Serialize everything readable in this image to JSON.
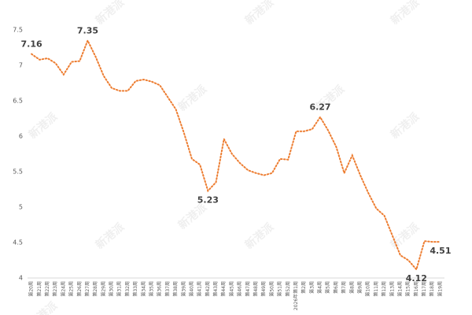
{
  "chart_data": {
    "type": "line",
    "watermark": "新港派",
    "categories": [
      "第20周",
      "第21周",
      "第22周",
      "第23周",
      "第24周",
      "第25周",
      "第26周",
      "第27周",
      "第28周",
      "第29周",
      "第30周",
      "第31周",
      "第32周",
      "第33周",
      "第34周",
      "第35周",
      "第36周",
      "第37周",
      "第38周",
      "第39周",
      "第40周",
      "第41周",
      "第42周",
      "第43周",
      "第44周",
      "第45周",
      "第46周",
      "第47周",
      "第48周",
      "第49周",
      "第50周",
      "第51周",
      "第52周",
      "2026年第1周",
      "第2周",
      "第3周",
      "第4周",
      "第5周",
      "第6周",
      "第7周",
      "第8周",
      "第9周",
      "第10周",
      "第11周",
      "第12周",
      "第13周",
      "第14周",
      "第15周",
      "第16周",
      "第17周",
      "第18周",
      "第19周"
    ],
    "series": [
      {
        "name": null,
        "color": "#ed7d31",
        "values": [
          7.16,
          7.08,
          7.1,
          7.03,
          6.87,
          7.05,
          7.06,
          7.35,
          7.12,
          6.85,
          6.68,
          6.64,
          6.64,
          6.78,
          6.8,
          6.77,
          6.72,
          6.55,
          6.38,
          6.05,
          5.68,
          5.6,
          5.23,
          5.35,
          5.96,
          5.75,
          5.62,
          5.52,
          5.48,
          5.45,
          5.48,
          5.68,
          5.67,
          6.07,
          6.07,
          6.1,
          6.27,
          6.08,
          5.85,
          5.48,
          5.73,
          5.45,
          5.2,
          4.98,
          4.88,
          4.6,
          4.32,
          4.25,
          4.12,
          4.52,
          4.51,
          4.51
        ],
        "value_labels": [
          "7.16",
          null,
          null,
          null,
          null,
          null,
          null,
          "7.35",
          null,
          null,
          null,
          null,
          null,
          null,
          null,
          null,
          null,
          null,
          null,
          null,
          null,
          null,
          "5.23",
          null,
          null,
          null,
          null,
          null,
          null,
          null,
          null,
          null,
          null,
          null,
          null,
          null,
          "6.27",
          null,
          null,
          null,
          null,
          null,
          null,
          null,
          null,
          null,
          null,
          null,
          "4.12",
          null,
          null,
          "4.51"
        ]
      }
    ],
    "ylim": [
      4,
      7.5
    ],
    "yticks": [
      4,
      4.5,
      5,
      5.5,
      6,
      6.5,
      7,
      7.5
    ],
    "grid": false
  }
}
